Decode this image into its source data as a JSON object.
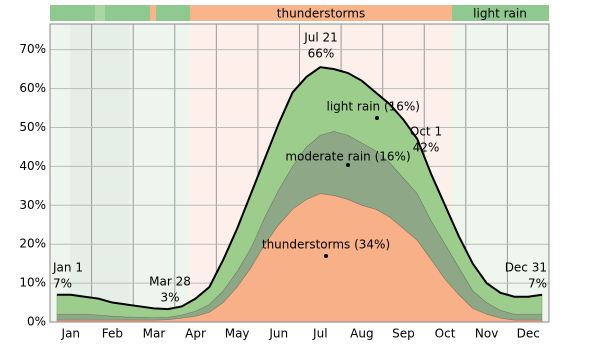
{
  "chart_data": {
    "type": "stacked-area",
    "categories": [
      null,
      "Jan",
      null,
      null,
      "Feb",
      null,
      null,
      "Mar",
      null,
      null,
      "Apr",
      null,
      null,
      "May",
      null,
      null,
      "Jun",
      null,
      null,
      "Jul",
      null,
      null,
      "Aug",
      null,
      null,
      "Sep",
      null,
      null,
      "Oct",
      null,
      null,
      "Nov",
      null,
      null,
      "Dec",
      null
    ],
    "series": [
      {
        "name": "thunderstorms",
        "annotation": "thunderstorms (34%)",
        "color": "#f8b088",
        "values": [
          0.5,
          0.5,
          0.5,
          0.5,
          0.5,
          0.5,
          0.5,
          0.5,
          0.6,
          1,
          1.5,
          2.5,
          5,
          9,
          14,
          20,
          25,
          29,
          31.5,
          33,
          32.5,
          31.5,
          30,
          29,
          27,
          24,
          21,
          16,
          11,
          7,
          3.5,
          2,
          1,
          0.5,
          0.5,
          0.5
        ]
      },
      {
        "name": "moderate rain",
        "annotation": "moderate rain (16%)",
        "color": "#8ea887",
        "values": [
          1.5,
          1.5,
          1.5,
          1.3,
          1,
          0.8,
          0.7,
          0.6,
          0.6,
          0.8,
          1.3,
          2,
          3,
          4,
          5,
          7,
          9,
          11,
          13.5,
          15,
          16.5,
          16.5,
          16,
          15,
          14,
          13,
          12,
          10,
          9,
          7,
          4.5,
          3,
          2,
          1.5,
          1.5,
          1.5
        ]
      },
      {
        "name": "light rain",
        "annotation": "light rain (16%)",
        "color": "#9dcd8d",
        "values": [
          5,
          5,
          4.5,
          4.2,
          3.5,
          3.2,
          2.8,
          2.4,
          2.1,
          2.2,
          3.2,
          4.5,
          8,
          11,
          14,
          15,
          17,
          19,
          18,
          17.5,
          16,
          16,
          16,
          15,
          15,
          15,
          14,
          12,
          10,
          8,
          7,
          5,
          4.5,
          4.5,
          4.5,
          5
        ]
      }
    ],
    "ylim": [
      0,
      76.6
    ],
    "yticks": [
      {
        "value": 0,
        "label": "0%"
      },
      {
        "value": 10,
        "label": "10%"
      },
      {
        "value": 20,
        "label": "20%"
      },
      {
        "value": 30,
        "label": "30%"
      },
      {
        "value": 40,
        "label": "40%"
      },
      {
        "value": 50,
        "label": "50%"
      },
      {
        "value": 60,
        "label": "60%"
      },
      {
        "value": 70,
        "label": "70%"
      }
    ],
    "grid": true,
    "annotations": [
      {
        "date": "Jan 1",
        "label": "7%"
      },
      {
        "date": "Mar 28",
        "label": "3%"
      },
      {
        "date": "Jul 21",
        "label": "66%"
      },
      {
        "date": "Oct 1",
        "label": "42%"
      },
      {
        "date": "Dec 31",
        "label": "7%"
      }
    ],
    "top_band": [
      "thunderstorms",
      "light rain"
    ]
  }
}
